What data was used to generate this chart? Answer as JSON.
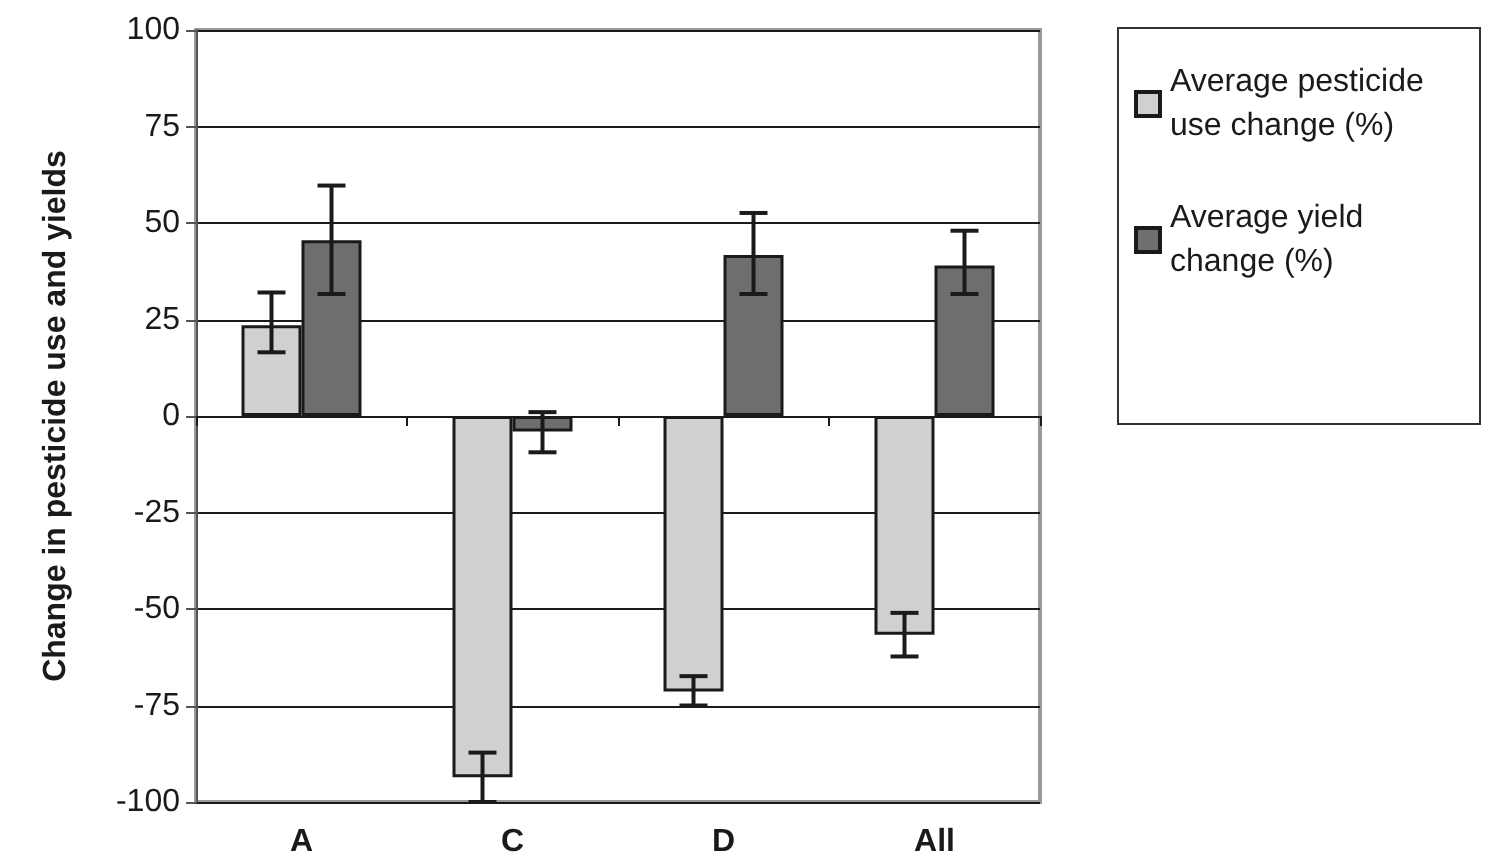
{
  "chart_data": {
    "type": "bar",
    "ylabel": "Change in pesticide use and yields",
    "categories": [
      "A",
      "C",
      "D",
      "All"
    ],
    "series": [
      {
        "name": "Average pesticide use change (%)",
        "color": "#d0d0d0",
        "values": [
          23.5,
          -93.6,
          -71.4,
          -56.7
        ],
        "errors": [
          [
            16.5,
            32
          ],
          [
            -100,
            -87.2
          ],
          [
            -75,
            -67.4
          ],
          [
            -62.3,
            -51
          ]
        ]
      },
      {
        "name": "Average yield change (%)",
        "color": "#6e6e70",
        "values": [
          45.5,
          -4,
          41.7,
          39
        ],
        "errors": [
          [
            31.6,
            59.7
          ],
          [
            -9.4,
            1
          ],
          [
            31.6,
            52.6
          ],
          [
            31.6,
            48
          ]
        ]
      }
    ],
    "ylim": [
      -100,
      100
    ],
    "yticks": [
      -100,
      -75,
      -50,
      -25,
      0,
      25,
      50,
      75,
      100
    ],
    "grid": "y",
    "legend": "right"
  }
}
